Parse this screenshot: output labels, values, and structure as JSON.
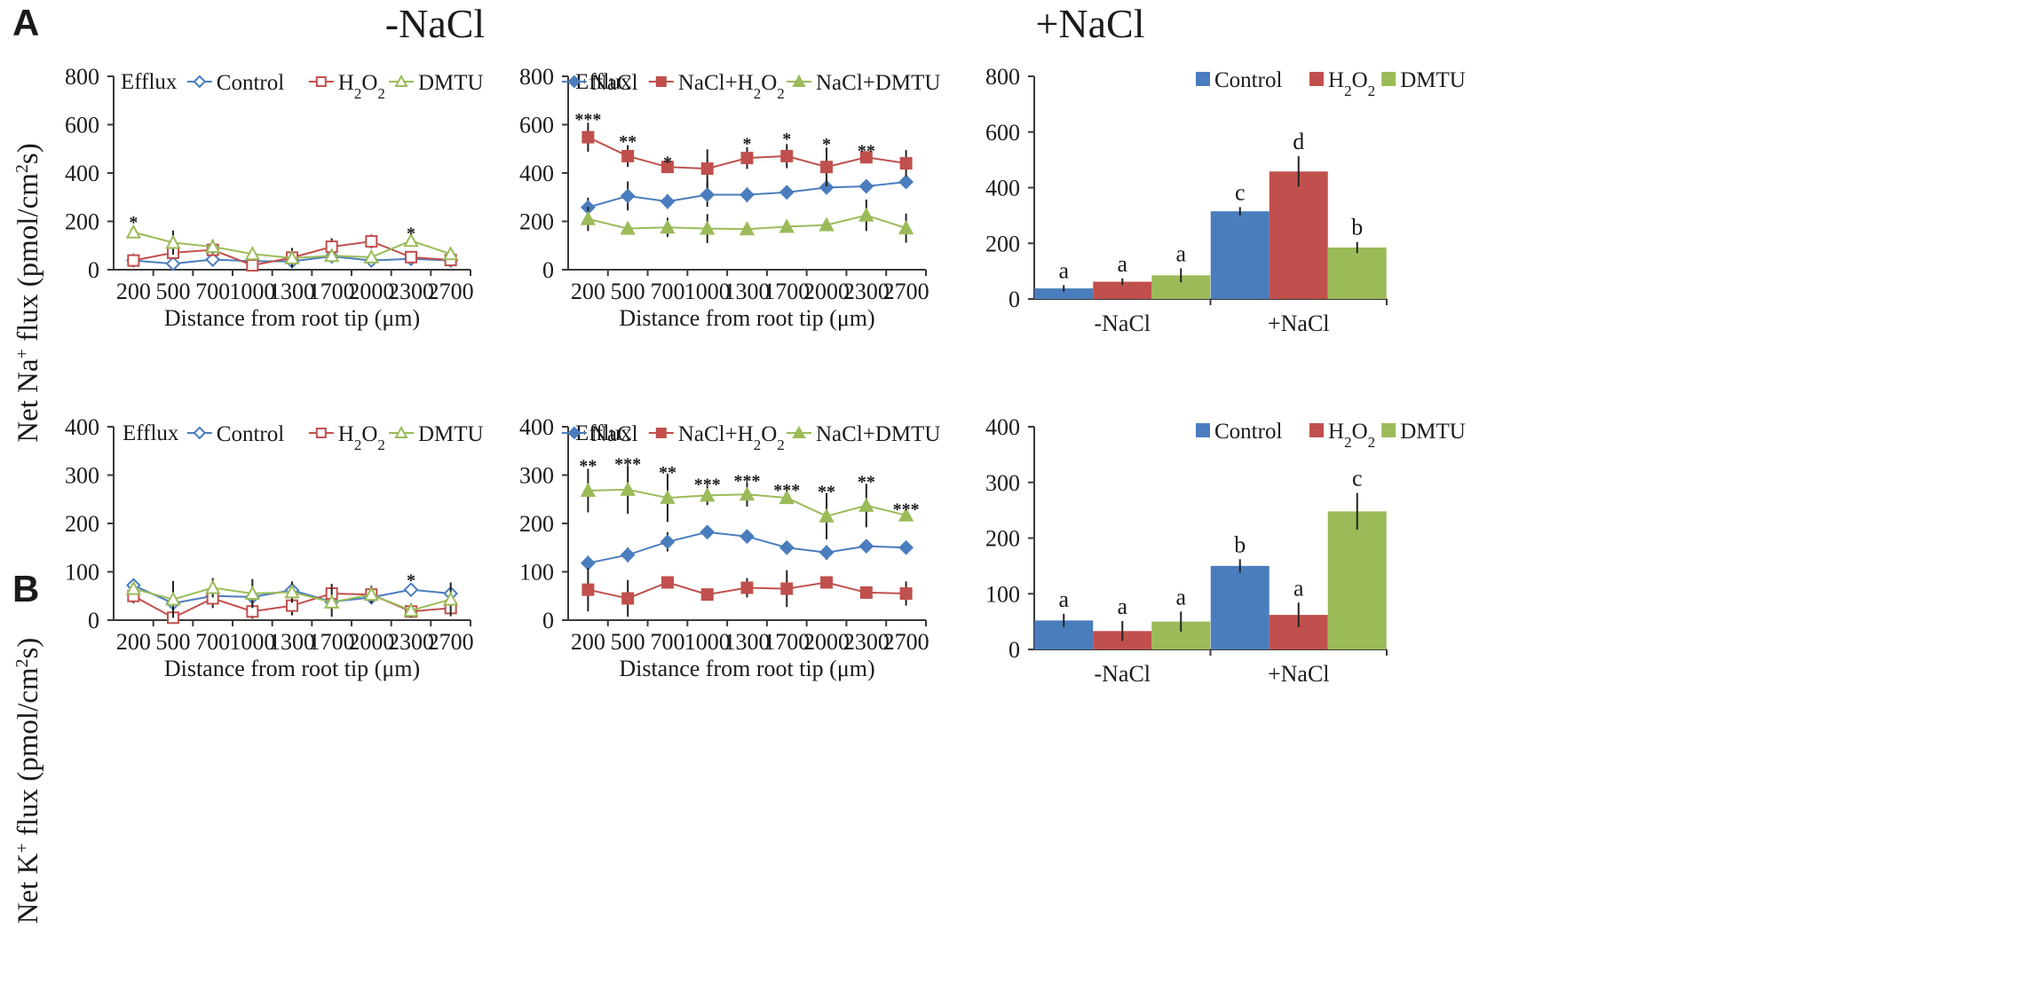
{
  "panel_labels": [
    "A",
    "B"
  ],
  "column_headers": [
    "-NaCl",
    "+NaCl"
  ],
  "y_labels": [
    {
      "main": "Net Na",
      "sup1": "+",
      "mid": " flux (pmol/cm",
      "sup2": "2",
      "end": "s)"
    },
    {
      "main": "Net K",
      "sup1": "+",
      "mid": " flux (pmol/cm",
      "sup2": "2",
      "end": "s)"
    }
  ],
  "colors": {
    "blue": "#4a7dbe",
    "red": "#c0504d",
    "green": "#9bbb59"
  },
  "chart_data": [
    {
      "id": "A-minus",
      "type": "line",
      "panel": "A",
      "note": "Efflux",
      "xlabel": "Distance from root tip (μm)",
      "categories": [
        "200",
        "500",
        "700",
        "1000",
        "1300",
        "1700",
        "2000",
        "2300",
        "2700"
      ],
      "ylim": [
        0,
        800
      ],
      "yticks": [
        0,
        200,
        400,
        600,
        800
      ],
      "marker_style": "open",
      "legend": [
        {
          "label": "Control",
          "color": "#4a7dbe",
          "marker": "diamond"
        },
        {
          "label": "H",
          "sub": "2",
          "label2": "O",
          "sub2": "2",
          "color": "#c0504d",
          "marker": "square"
        },
        {
          "label": "DMTU",
          "color": "#9bbb59",
          "marker": "triangle"
        }
      ],
      "series": [
        {
          "name": "Control",
          "color": "#4a7dbe",
          "marker": "diamond",
          "values": [
            38,
            25,
            42,
            35,
            35,
            55,
            38,
            45,
            38
          ],
          "errors": [
            6,
            6,
            10,
            8,
            8,
            10,
            12,
            10,
            8
          ]
        },
        {
          "name": "H2O2",
          "color": "#c0504d",
          "marker": "square",
          "values": [
            38,
            70,
            82,
            18,
            50,
            95,
            117,
            52,
            40
          ],
          "errors": [
            12,
            25,
            18,
            15,
            40,
            35,
            28,
            20,
            14
          ]
        },
        {
          "name": "DMTU",
          "color": "#9bbb59",
          "marker": "triangle",
          "values": [
            155,
            112,
            95,
            65,
            48,
            58,
            52,
            120,
            65
          ],
          "errors": [
            20,
            50,
            30,
            18,
            15,
            15,
            12,
            20,
            15
          ]
        }
      ],
      "annotations": [
        {
          "index": 0,
          "text": "*",
          "value": 195
        },
        {
          "index": 7,
          "text": "*",
          "value": 148
        }
      ]
    },
    {
      "id": "A-plus",
      "type": "line",
      "panel": "A",
      "note": "Efflux",
      "xlabel": "Distance from root tip (μm)",
      "categories": [
        "200",
        "500",
        "700",
        "1000",
        "1300",
        "1700",
        "2000",
        "2300",
        "2700"
      ],
      "ylim": [
        0,
        800
      ],
      "yticks": [
        0,
        200,
        400,
        600,
        800
      ],
      "marker_style": "filled",
      "legend": [
        {
          "label": "NaCl",
          "color": "#4a7dbe",
          "marker": "diamond"
        },
        {
          "label": "NaCl+H",
          "sub": "2",
          "label2": "O",
          "sub2": "2",
          "color": "#c0504d",
          "marker": "square"
        },
        {
          "label": "NaCl+DMTU",
          "color": "#9bbb59",
          "marker": "triangle"
        }
      ],
      "series": [
        {
          "name": "NaCl",
          "color": "#4a7dbe",
          "marker": "diamond",
          "values": [
            258,
            305,
            282,
            310,
            310,
            320,
            340,
            345,
            363
          ],
          "errors": [
            40,
            60,
            30,
            50,
            30,
            25,
            20,
            15,
            15
          ]
        },
        {
          "name": "NaCl+H2O2",
          "color": "#c0504d",
          "marker": "square",
          "values": [
            548,
            470,
            425,
            418,
            462,
            470,
            425,
            465,
            440
          ],
          "errors": [
            60,
            45,
            20,
            80,
            45,
            50,
            80,
            20,
            55
          ]
        },
        {
          "name": "NaCl+DMTU",
          "color": "#9bbb59",
          "marker": "triangle",
          "values": [
            210,
            170,
            175,
            170,
            168,
            178,
            185,
            225,
            172
          ],
          "errors": [
            50,
            25,
            40,
            60,
            15,
            20,
            20,
            65,
            60
          ]
        }
      ],
      "annotations": [
        {
          "index": 0,
          "text": "***",
          "value": 620
        },
        {
          "index": 1,
          "text": "**",
          "value": 528
        },
        {
          "index": 2,
          "text": "*",
          "value": 443
        },
        {
          "index": 4,
          "text": "*",
          "value": 520
        },
        {
          "index": 5,
          "text": "*",
          "value": 540
        },
        {
          "index": 6,
          "text": "*",
          "value": 518
        },
        {
          "index": 7,
          "text": "**",
          "value": 490
        }
      ]
    },
    {
      "id": "A-bar",
      "type": "bar",
      "panel": "A",
      "categories": [
        "-NaCl",
        "+NaCl"
      ],
      "ylim": [
        0,
        800
      ],
      "yticks": [
        0,
        200,
        400,
        600,
        800
      ],
      "legend": [
        {
          "label": "Control",
          "color": "#4a7dbe"
        },
        {
          "label": "H",
          "sub": "2",
          "label2": "O",
          "sub2": "2",
          "color": "#c0504d"
        },
        {
          "label": "DMTU",
          "color": "#9bbb59"
        }
      ],
      "series": [
        {
          "name": "Control",
          "color": "#4a7dbe",
          "values": [
            38,
            315
          ],
          "errors": [
            12,
            15
          ],
          "letters": [
            "a",
            "c"
          ]
        },
        {
          "name": "H2O2",
          "color": "#c0504d",
          "values": [
            62,
            458
          ],
          "errors": [
            12,
            55
          ],
          "letters": [
            "a",
            "d"
          ]
        },
        {
          "name": "DMTU",
          "color": "#9bbb59",
          "values": [
            85,
            185
          ],
          "errors": [
            25,
            20
          ],
          "letters": [
            "a",
            "b"
          ]
        }
      ]
    },
    {
      "id": "B-minus",
      "type": "line",
      "panel": "B",
      "note": "Efflux",
      "xlabel": "Distance from root tip (μm)",
      "categories": [
        "200",
        "500",
        "700",
        "1000",
        "1300",
        "1700",
        "2000",
        "2300",
        "2700"
      ],
      "ylim": [
        0,
        400
      ],
      "yticks": [
        0,
        100,
        200,
        300,
        400
      ],
      "marker_style": "open",
      "legend": [
        {
          "label": "Control",
          "color": "#4a7dbe",
          "marker": "diamond"
        },
        {
          "label": "H",
          "sub": "2",
          "label2": "O",
          "sub2": "2",
          "color": "#c0504d",
          "marker": "square"
        },
        {
          "label": "DMTU",
          "color": "#9bbb59",
          "marker": "triangle"
        }
      ],
      "series": [
        {
          "name": "Control",
          "color": "#4a7dbe",
          "marker": "diamond",
          "values": [
            72,
            35,
            50,
            48,
            62,
            38,
            47,
            63,
            55
          ],
          "errors": [
            10,
            10,
            12,
            10,
            10,
            8,
            10,
            12,
            10
          ]
        },
        {
          "name": "H2O2",
          "color": "#c0504d",
          "marker": "square",
          "values": [
            50,
            5,
            45,
            18,
            30,
            55,
            53,
            18,
            25
          ],
          "errors": [
            15,
            15,
            20,
            15,
            20,
            20,
            15,
            10,
            12
          ]
        },
        {
          "name": "DMTU",
          "color": "#9bbb59",
          "marker": "triangle",
          "values": [
            65,
            43,
            67,
            55,
            58,
            37,
            53,
            20,
            43
          ],
          "errors": [
            12,
            38,
            20,
            30,
            22,
            30,
            18,
            15,
            35
          ]
        }
      ],
      "annotations": [
        {
          "index": 7,
          "text": "*",
          "value": 82
        }
      ]
    },
    {
      "id": "B-plus",
      "type": "line",
      "panel": "B",
      "note": "Efflux",
      "xlabel": "Distance from root tip (μm)",
      "categories": [
        "200",
        "500",
        "700",
        "1000",
        "1300",
        "1700",
        "2000",
        "2300",
        "2700"
      ],
      "ylim": [
        0,
        400
      ],
      "yticks": [
        0,
        100,
        200,
        300,
        400
      ],
      "marker_style": "filled",
      "legend": [
        {
          "label": "NaCl",
          "color": "#4a7dbe",
          "marker": "diamond"
        },
        {
          "label": "NaCl+H",
          "sub": "2",
          "label2": "O",
          "sub2": "2",
          "color": "#c0504d",
          "marker": "square"
        },
        {
          "label": "NaCl+DMTU",
          "color": "#9bbb59",
          "marker": "triangle"
        }
      ],
      "series": [
        {
          "name": "NaCl",
          "color": "#4a7dbe",
          "marker": "diamond",
          "values": [
            118,
            135,
            162,
            182,
            173,
            150,
            140,
            153,
            150
          ],
          "errors": [
            15,
            15,
            20,
            8,
            8,
            12,
            15,
            12,
            10
          ]
        },
        {
          "name": "NaCl+H2O2",
          "color": "#c0504d",
          "marker": "square",
          "values": [
            63,
            45,
            78,
            53,
            67,
            65,
            78,
            57,
            55
          ],
          "errors": [
            45,
            38,
            5,
            12,
            20,
            38,
            12,
            10,
            25
          ]
        },
        {
          "name": "NaCl+DMTU",
          "color": "#9bbb59",
          "marker": "triangle",
          "values": [
            268,
            270,
            253,
            258,
            260,
            253,
            215,
            237,
            217
          ],
          "errors": [
            45,
            50,
            50,
            20,
            25,
            12,
            48,
            45,
            8
          ]
        }
      ],
      "annotations": [
        {
          "index": 0,
          "text": "**",
          "value": 318
        },
        {
          "index": 1,
          "text": "***",
          "value": 322
        },
        {
          "index": 2,
          "text": "**",
          "value": 305
        },
        {
          "index": 3,
          "text": "***",
          "value": 280
        },
        {
          "index": 4,
          "text": "***",
          "value": 287
        },
        {
          "index": 5,
          "text": "***",
          "value": 268
        },
        {
          "index": 6,
          "text": "**",
          "value": 265
        },
        {
          "index": 7,
          "text": "**",
          "value": 285
        },
        {
          "index": 8,
          "text": "***",
          "value": 228
        }
      ]
    },
    {
      "id": "B-bar",
      "type": "bar",
      "panel": "B",
      "categories": [
        "-NaCl",
        "+NaCl"
      ],
      "ylim": [
        0,
        400
      ],
      "yticks": [
        0,
        100,
        200,
        300,
        400
      ],
      "legend": [
        {
          "label": "Control",
          "color": "#4a7dbe"
        },
        {
          "label": "H",
          "sub": "2",
          "label2": "O",
          "sub2": "2",
          "color": "#c0504d"
        },
        {
          "label": "DMTU",
          "color": "#9bbb59"
        }
      ],
      "series": [
        {
          "name": "Control",
          "color": "#4a7dbe",
          "values": [
            52,
            150
          ],
          "errors": [
            12,
            12
          ],
          "letters": [
            "a",
            "b"
          ]
        },
        {
          "name": "H2O2",
          "color": "#c0504d",
          "values": [
            33,
            62
          ],
          "errors": [
            18,
            22
          ],
          "letters": [
            "a",
            "a"
          ]
        },
        {
          "name": "DMTU",
          "color": "#9bbb59",
          "values": [
            50,
            248
          ],
          "errors": [
            18,
            33
          ],
          "letters": [
            "a",
            "c"
          ]
        }
      ]
    }
  ]
}
